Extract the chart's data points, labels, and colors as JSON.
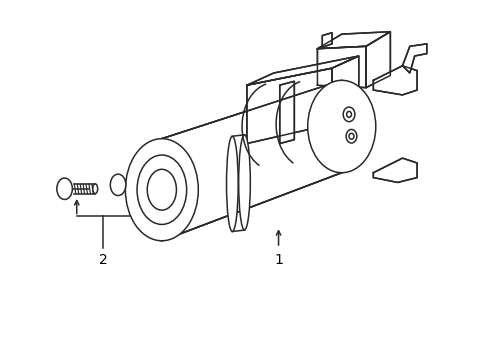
{
  "background_color": "#ffffff",
  "line_color": "#2a2a2a",
  "label_color": "#000000",
  "lw": 1.1,
  "fig_width": 4.89,
  "fig_height": 3.6,
  "dpi": 100,
  "label1": "1",
  "label2": "2"
}
